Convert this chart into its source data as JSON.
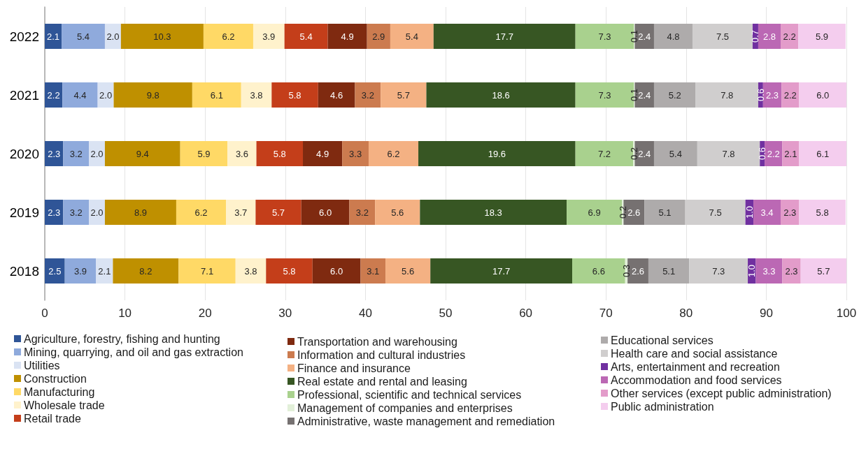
{
  "chart_data": {
    "type": "bar",
    "orientation": "horizontal",
    "stacked": true,
    "grid": "x",
    "legend": "bottom",
    "categories": [
      "2022",
      "2021",
      "2020",
      "2019",
      "2018"
    ],
    "xlim": [
      0,
      100
    ],
    "xticks": [
      0,
      10,
      20,
      30,
      40,
      50,
      60,
      70,
      80,
      90,
      100
    ],
    "series": [
      {
        "name": "Agriculture, forestry, fishing and hunting",
        "color": "#2f5597",
        "values": [
          2.1,
          2.2,
          2.3,
          2.3,
          2.5
        ],
        "value_labels": [
          "2.1",
          "2.2",
          "2.3",
          "2.3",
          "2.5"
        ]
      },
      {
        "name": "Mining, quarrying, and oil and gas extraction",
        "color": "#8faadc",
        "values": [
          5.4,
          4.4,
          3.2,
          3.2,
          3.9
        ],
        "value_labels": [
          "5.4",
          "4.4",
          "3.2",
          "3.2",
          "3.9"
        ]
      },
      {
        "name": "Utilities",
        "color": "#dae3f3",
        "values": [
          2.0,
          2.0,
          2.0,
          2.0,
          2.1
        ],
        "value_labels": [
          "2.0",
          "2.0",
          "2.0",
          "2.0",
          "2.1"
        ]
      },
      {
        "name": "Construction",
        "color": "#bf9000",
        "values": [
          10.3,
          9.8,
          9.4,
          8.9,
          8.2
        ],
        "value_labels": [
          "10.3",
          "9.8",
          "9.4",
          "8.9",
          "8.2"
        ]
      },
      {
        "name": "Manufacturing",
        "color": "#ffd966",
        "values": [
          6.2,
          6.1,
          5.9,
          6.2,
          7.1
        ],
        "value_labels": [
          "6.2",
          "6.1",
          "5.9",
          "6.2",
          "7.1"
        ]
      },
      {
        "name": "Wholesale trade",
        "color": "#fff2cc",
        "values": [
          3.9,
          3.8,
          3.6,
          3.7,
          3.8
        ],
        "value_labels": [
          "3.9",
          "3.8",
          "3.6",
          "3.7",
          "3.8"
        ]
      },
      {
        "name": "Retail trade",
        "color": "#c43e1a",
        "values": [
          5.4,
          5.8,
          5.8,
          5.7,
          5.8
        ],
        "value_labels": [
          "5.4",
          "5.8",
          "5.8",
          "5.7",
          "5.8"
        ]
      },
      {
        "name": "Transportation and warehousing",
        "color": "#7f2a10",
        "values": [
          4.9,
          4.6,
          4.9,
          6.0,
          6.0
        ],
        "value_labels": [
          "4.9",
          "4.6",
          "4.9",
          "6.0",
          "6.0"
        ]
      },
      {
        "name": "Information and cultural industries",
        "color": "#cc7b4f",
        "values": [
          2.9,
          3.2,
          3.3,
          3.2,
          3.1
        ],
        "value_labels": [
          "2.9",
          "3.2",
          "3.3",
          "3.2",
          "3.1"
        ]
      },
      {
        "name": "Finance and insurance",
        "color": "#f4b183",
        "values": [
          5.4,
          5.7,
          6.2,
          5.6,
          5.6
        ],
        "value_labels": [
          "5.4",
          "5.7",
          "6.2",
          "5.6",
          "5.6"
        ]
      },
      {
        "name": "Real estate and rental and leasing",
        "color": "#375623",
        "values": [
          17.7,
          18.6,
          19.6,
          18.3,
          17.7
        ],
        "value_labels": [
          "17.7",
          "18.6",
          "19.6",
          "18.3",
          "17.7"
        ]
      },
      {
        "name": "Professional, scientific and technical services",
        "color": "#a9d18e",
        "values": [
          7.3,
          7.3,
          7.2,
          6.9,
          6.6
        ],
        "value_labels": [
          "7.3",
          "7.3",
          "7.2",
          "6.9",
          "6.6"
        ]
      },
      {
        "name": "Management of companies and enterprises",
        "color": "#e2f0d9",
        "values": [
          0.1,
          0.1,
          0.2,
          0.2,
          0.3
        ],
        "value_labels": [
          "0.1",
          "0.1",
          "0.2",
          "0.2",
          "0.3"
        ]
      },
      {
        "name": "Administrative, waste management and remediation",
        "color": "#767171",
        "values": [
          2.4,
          2.4,
          2.4,
          2.6,
          2.6
        ],
        "value_labels": [
          "2.4",
          "2.4",
          "2.4",
          "2.6",
          "2.6"
        ]
      },
      {
        "name": "Educational services",
        "color": "#aeabab",
        "values": [
          4.8,
          5.2,
          5.4,
          5.1,
          5.1
        ],
        "value_labels": [
          "4.8",
          "5.2",
          "5.4",
          "5.1",
          "5.1"
        ]
      },
      {
        "name": "Health care and social assistance",
        "color": "#d0cece",
        "values": [
          7.5,
          7.8,
          7.8,
          7.5,
          7.3
        ],
        "value_labels": [
          "7.5",
          "7.8",
          "7.8",
          "7.5",
          "7.3"
        ]
      },
      {
        "name": "Arts, entertainment and recreation",
        "color": "#7030a0",
        "values": [
          0.7,
          0.6,
          0.6,
          1.0,
          1.0
        ],
        "value_labels": [
          "0.7",
          "0.6",
          "0.6",
          "1.0",
          "1.0"
        ]
      },
      {
        "name": "Accommodation and food services",
        "color": "#bb68b4",
        "values": [
          2.8,
          2.3,
          2.2,
          3.4,
          3.3
        ],
        "value_labels": [
          "2.8",
          "2.3",
          "2.2",
          "3.4",
          "3.3"
        ]
      },
      {
        "name": "Other services (except public administration)",
        "color": "#e39cca",
        "values": [
          2.2,
          2.2,
          2.1,
          2.3,
          2.3
        ],
        "value_labels": [
          "2.2",
          "2.2",
          "2.1",
          "2.3",
          "2.3"
        ]
      },
      {
        "name": "Public administration",
        "color": "#f4cdee",
        "values": [
          5.9,
          6.0,
          6.1,
          5.8,
          5.7
        ],
        "value_labels": [
          "5.9",
          "6.0",
          "6.1",
          "5.8",
          "5.7"
        ]
      }
    ]
  }
}
